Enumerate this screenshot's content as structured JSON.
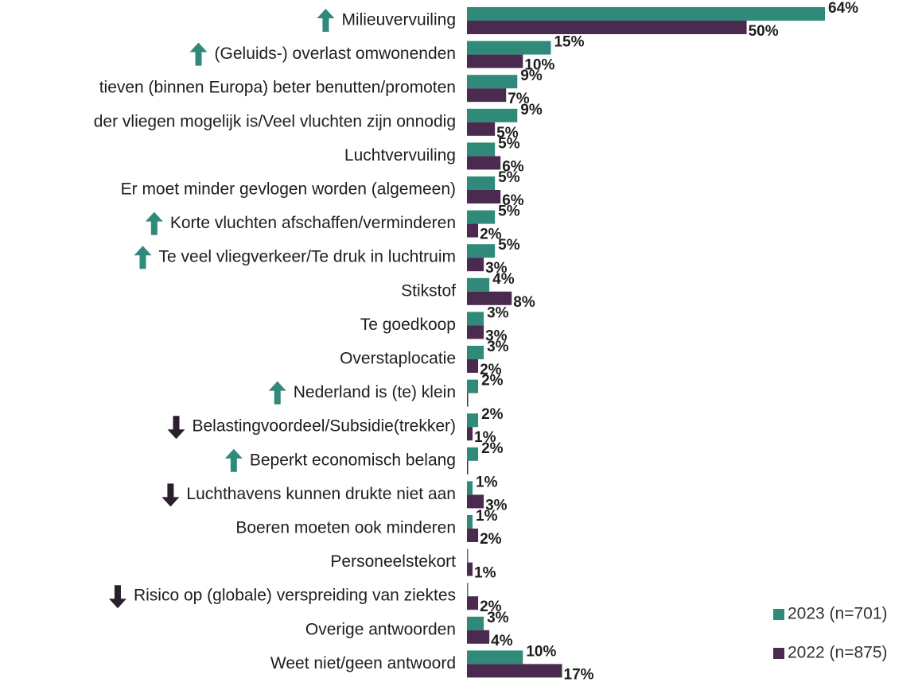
{
  "chart_data": {
    "type": "hbar",
    "categories": [
      "Milieuvervuiling",
      "(Geluids-) overlast omwonenden",
      "tieven (binnen Europa) beter benutten/promoten",
      "der vliegen mogelijk is/Veel vluchten zijn onnodig",
      "Luchtvervuiling",
      "Er moet minder gevlogen worden (algemeen)",
      "Korte vluchten afschaffen/verminderen",
      "Te veel vliegverkeer/Te druk in luchtruim",
      "Stikstof",
      "Te goedkoop",
      "Overstaplocatie",
      "Nederland is (te) klein",
      "Belastingvoordeel/Subsidie(trekker)",
      "Beperkt economisch belang",
      "Luchthavens kunnen drukte niet aan",
      "Boeren moeten ook minderen",
      "Personeelstekort",
      "Risico op (globale) verspreiding van ziektes",
      "Overige antwoorden",
      "Weet niet/geen antwoord"
    ],
    "trend": [
      "up",
      "up",
      null,
      null,
      null,
      null,
      "up",
      "up",
      null,
      null,
      null,
      "up",
      "down",
      "up",
      "down",
      null,
      null,
      "down",
      null,
      null
    ],
    "series": [
      {
        "name": "2023  (n=701)",
        "color": "#2f8a79",
        "values": [
          64,
          15,
          9,
          9,
          5,
          5,
          5,
          5,
          4,
          3,
          3,
          2,
          2,
          2,
          1,
          1,
          0.2,
          0,
          3,
          10
        ],
        "value_labels": [
          "64%",
          "15%",
          "9%",
          "9%",
          "5%",
          "5%",
          "5%",
          "5%",
          "4%",
          "3%",
          "3%",
          "2%",
          "2%",
          "2%",
          "1%",
          "1%",
          null,
          null,
          "3%",
          "10%"
        ]
      },
      {
        "name": "2022  (n=875)",
        "color": "#4b2a50",
        "values": [
          50,
          10,
          7,
          5,
          6,
          6,
          2,
          3,
          8,
          3,
          2,
          0.2,
          1,
          0.2,
          3,
          2,
          1,
          2,
          4,
          17
        ],
        "value_labels": [
          "50%",
          "10%",
          "7%",
          "5%",
          "6%",
          "6%",
          "2%",
          "3%",
          "8%",
          "3%",
          "2%",
          null,
          "1%",
          null,
          "3%",
          "2%",
          "1%",
          "2%",
          "4%",
          "17%"
        ]
      }
    ],
    "xlim": [
      0,
      64
    ],
    "legend": "lower right"
  }
}
